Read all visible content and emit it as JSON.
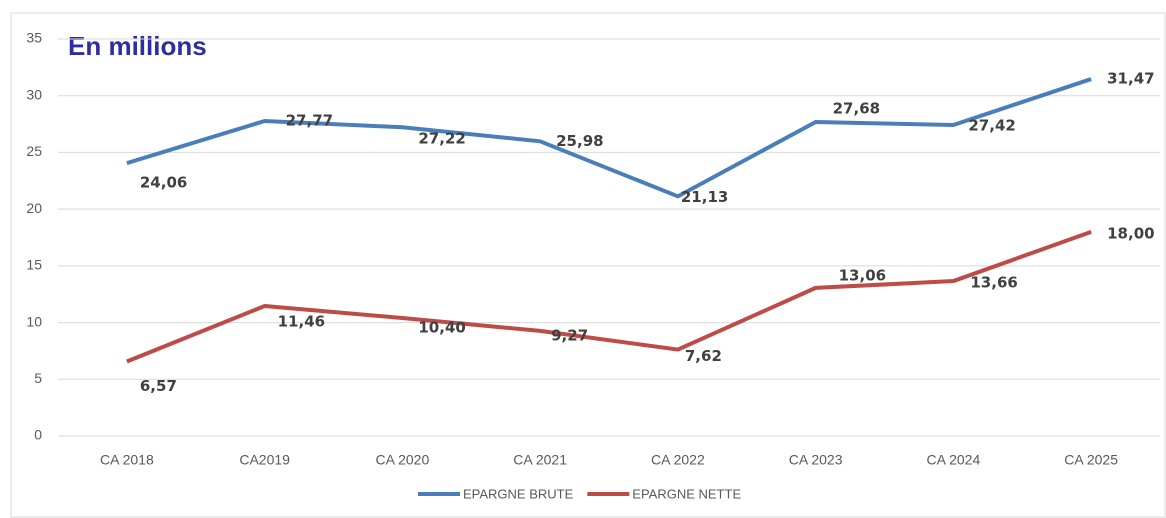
{
  "chart_data": {
    "type": "line",
    "title": "En millions",
    "categories": [
      "CA 2018",
      "CA2019",
      "CA 2020",
      "CA 2021",
      "CA 2022",
      "CA 2023",
      "CA 2024",
      "CA 2025"
    ],
    "series": [
      {
        "name": "EPARGNE BRUTE",
        "color": "#4a7ebb",
        "values": [
          24.06,
          27.77,
          27.22,
          25.98,
          21.13,
          27.68,
          27.42,
          31.47
        ],
        "value_labels": [
          "24,06",
          "27,77",
          "27,22",
          "25,98",
          "21,13",
          "27,68",
          "27,42",
          "31,47"
        ]
      },
      {
        "name": "EPARGNE NETTE",
        "color": "#be4b48",
        "values": [
          6.57,
          11.46,
          10.4,
          9.27,
          7.62,
          13.06,
          13.66,
          18.0
        ],
        "value_labels": [
          "6,57",
          "11,46",
          "10,40",
          "9,27",
          "7,62",
          "13,06",
          "13,66",
          "18,00"
        ]
      }
    ],
    "ylim": [
      0,
      35
    ],
    "yticks": [
      0,
      5,
      10,
      15,
      20,
      25,
      30,
      35
    ],
    "grid": true,
    "legend": "bottom"
  }
}
